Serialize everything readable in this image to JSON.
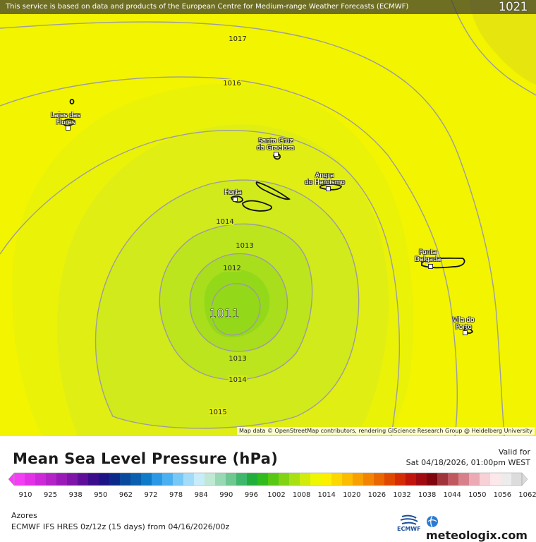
{
  "header": {
    "notice": "This service is based on data and products of the European Centre for Medium-range Weather Forecasts (ECMWF)",
    "corner_value": "1021"
  },
  "map": {
    "attribution": "Map data © OpenStreetMap contributors, rendering GIScience Research Group @ Heidelberg University",
    "isobar_labels": [
      "1017",
      "1016",
      "1014",
      "1013",
      "1012",
      "1011",
      "1013",
      "1014",
      "1015"
    ],
    "places": [
      {
        "name_line1": "Lajes das",
        "name_line2": "Flores"
      },
      {
        "name_line1": "Santa Cruz",
        "name_line2": "da Graciosa"
      },
      {
        "name_line1": "Angra",
        "name_line2": "do Heroísmo"
      },
      {
        "name_line1": "Horta",
        "name_line2": ""
      },
      {
        "name_line1": "Ponta",
        "name_line2": "Delgada"
      },
      {
        "name_line1": "Vila do",
        "name_line2": "Porto"
      }
    ],
    "colors": {
      "field_1011": "#94d81a",
      "field_1012": "#a8de1c",
      "field_1013": "#bce51e",
      "field_1014": "#d0ea1c",
      "field_1015": "#e0ee14",
      "field_1016": "#eaf208",
      "field_outer": "#f2f400",
      "field_1021": "#e6e60e",
      "isobar": "#9c9ca0"
    }
  },
  "legend": {
    "title": "Mean Sea Level Pressure (hPa)",
    "valid_for_label": "Valid for",
    "valid_date": "Sat 04/18/2026, 01:00pm WEST",
    "scale_ticks": [
      "910",
      "925",
      "938",
      "950",
      "962",
      "972",
      "978",
      "984",
      "990",
      "996",
      "1002",
      "1008",
      "1014",
      "1020",
      "1026",
      "1032",
      "1038",
      "1044",
      "1050",
      "1056",
      "1062"
    ],
    "scale_colors": [
      "#f43ef4",
      "#e232e8",
      "#cc2ad8",
      "#b422c8",
      "#9a1ab8",
      "#7e14a8",
      "#5e0e98",
      "#3c0c8c",
      "#1c1486",
      "#0a2a8a",
      "#0a4a9c",
      "#0a5fae",
      "#0e7ac8",
      "#2b98e6",
      "#4cb0f0",
      "#78c8f6",
      "#a2dcf8",
      "#c8ecfa",
      "#bfe9d4",
      "#98d8b4",
      "#6ec892",
      "#40b86c",
      "#22ae3c",
      "#30bc1c",
      "#58c814",
      "#80d414",
      "#a8e014",
      "#d0ec0c",
      "#eef600",
      "#fcf000",
      "#fcd800",
      "#fcbc00",
      "#f8a000",
      "#f28400",
      "#ea6600",
      "#e04800",
      "#d42c04",
      "#c0140c",
      "#a00a10",
      "#80060e",
      "#a0343c",
      "#c05860",
      "#d8808a",
      "#ecaab4",
      "#f8d0d6",
      "#fce8ea",
      "#ececec",
      "#dcdcdc"
    ],
    "region": "Azores",
    "model": "ECMWF IFS HRES 0z/12z (15 days) from  04/16/2026/00z",
    "ecmwf_logo_text": "ECMWF",
    "brand": "meteologix.com"
  }
}
